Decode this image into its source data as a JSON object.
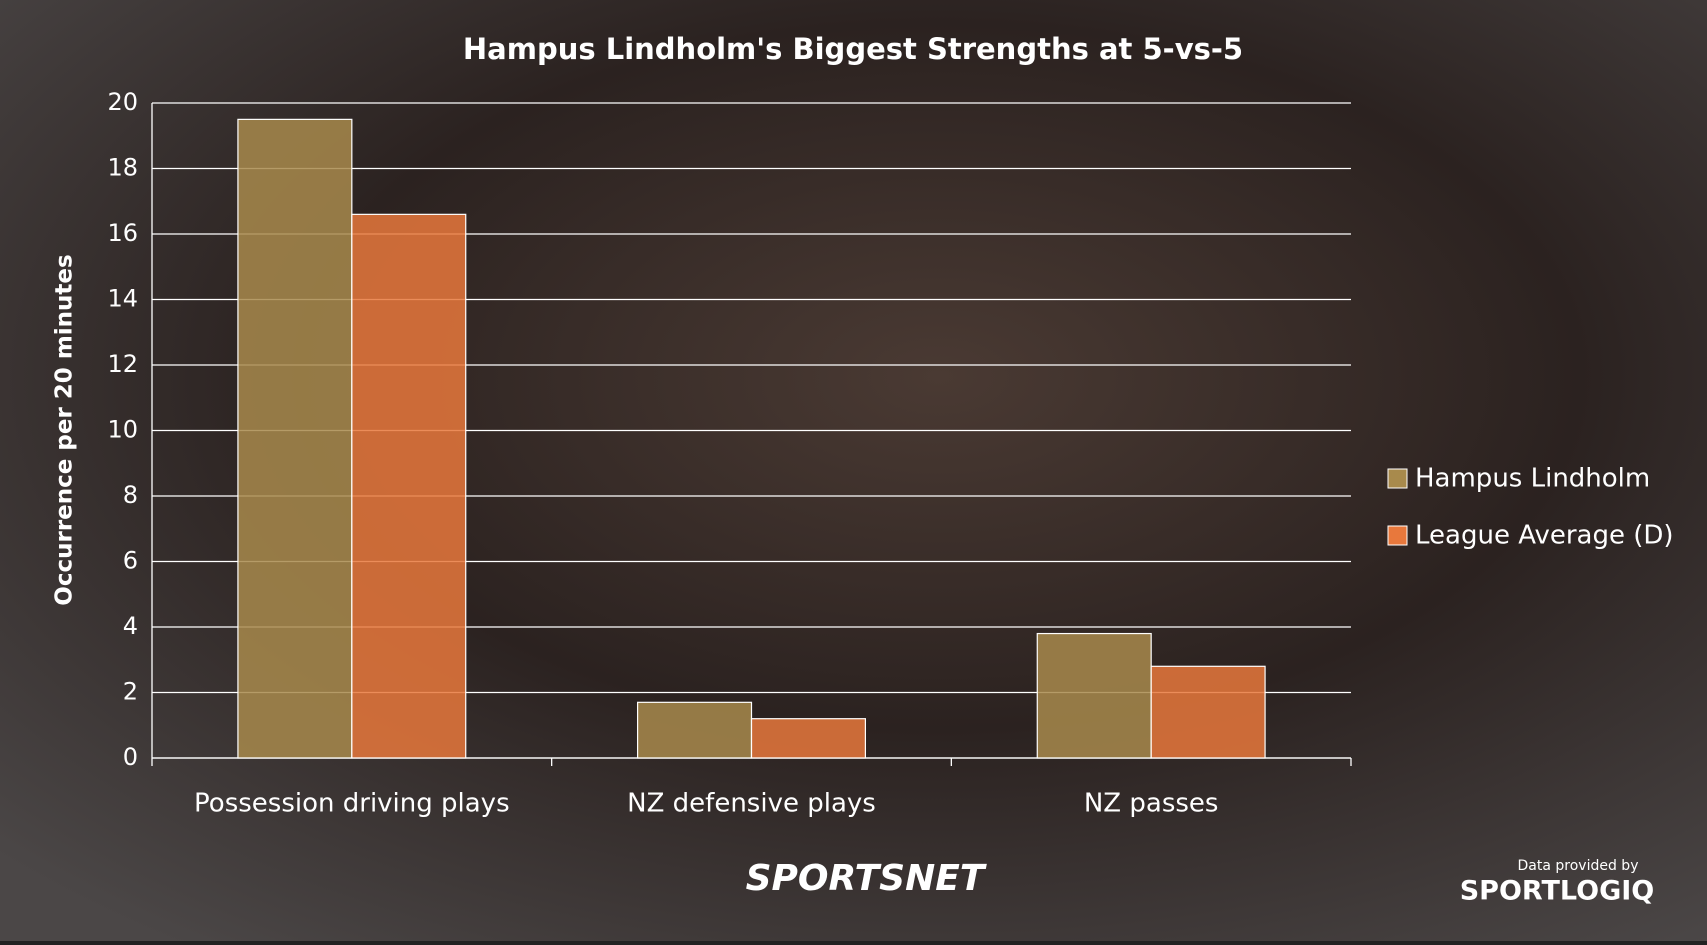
{
  "chart_data": {
    "type": "bar",
    "title": "Hampus Lindholm's Biggest Strengths at 5-vs-5",
    "y_label": "Occurrence per 20 minutes",
    "categories": [
      "Possession driving plays",
      "NZ defensive plays",
      "NZ passes"
    ],
    "series": [
      {
        "name": "Hampus Lindholm",
        "color": "#a88a4c",
        "values": [
          19.5,
          1.7,
          3.8
        ]
      },
      {
        "name": "League Average (D)",
        "color": "#e8783c",
        "values": [
          16.6,
          1.2,
          2.8
        ]
      }
    ],
    "ylim": [
      0,
      20
    ],
    "yticks": [
      0,
      2,
      4,
      6,
      8,
      10,
      12,
      14,
      16,
      18,
      20
    ],
    "grid": true,
    "legend": "right",
    "brand": "SPORTSNET",
    "credit": "Data provided by",
    "credit_brand": "SPORTLOGIQ"
  }
}
